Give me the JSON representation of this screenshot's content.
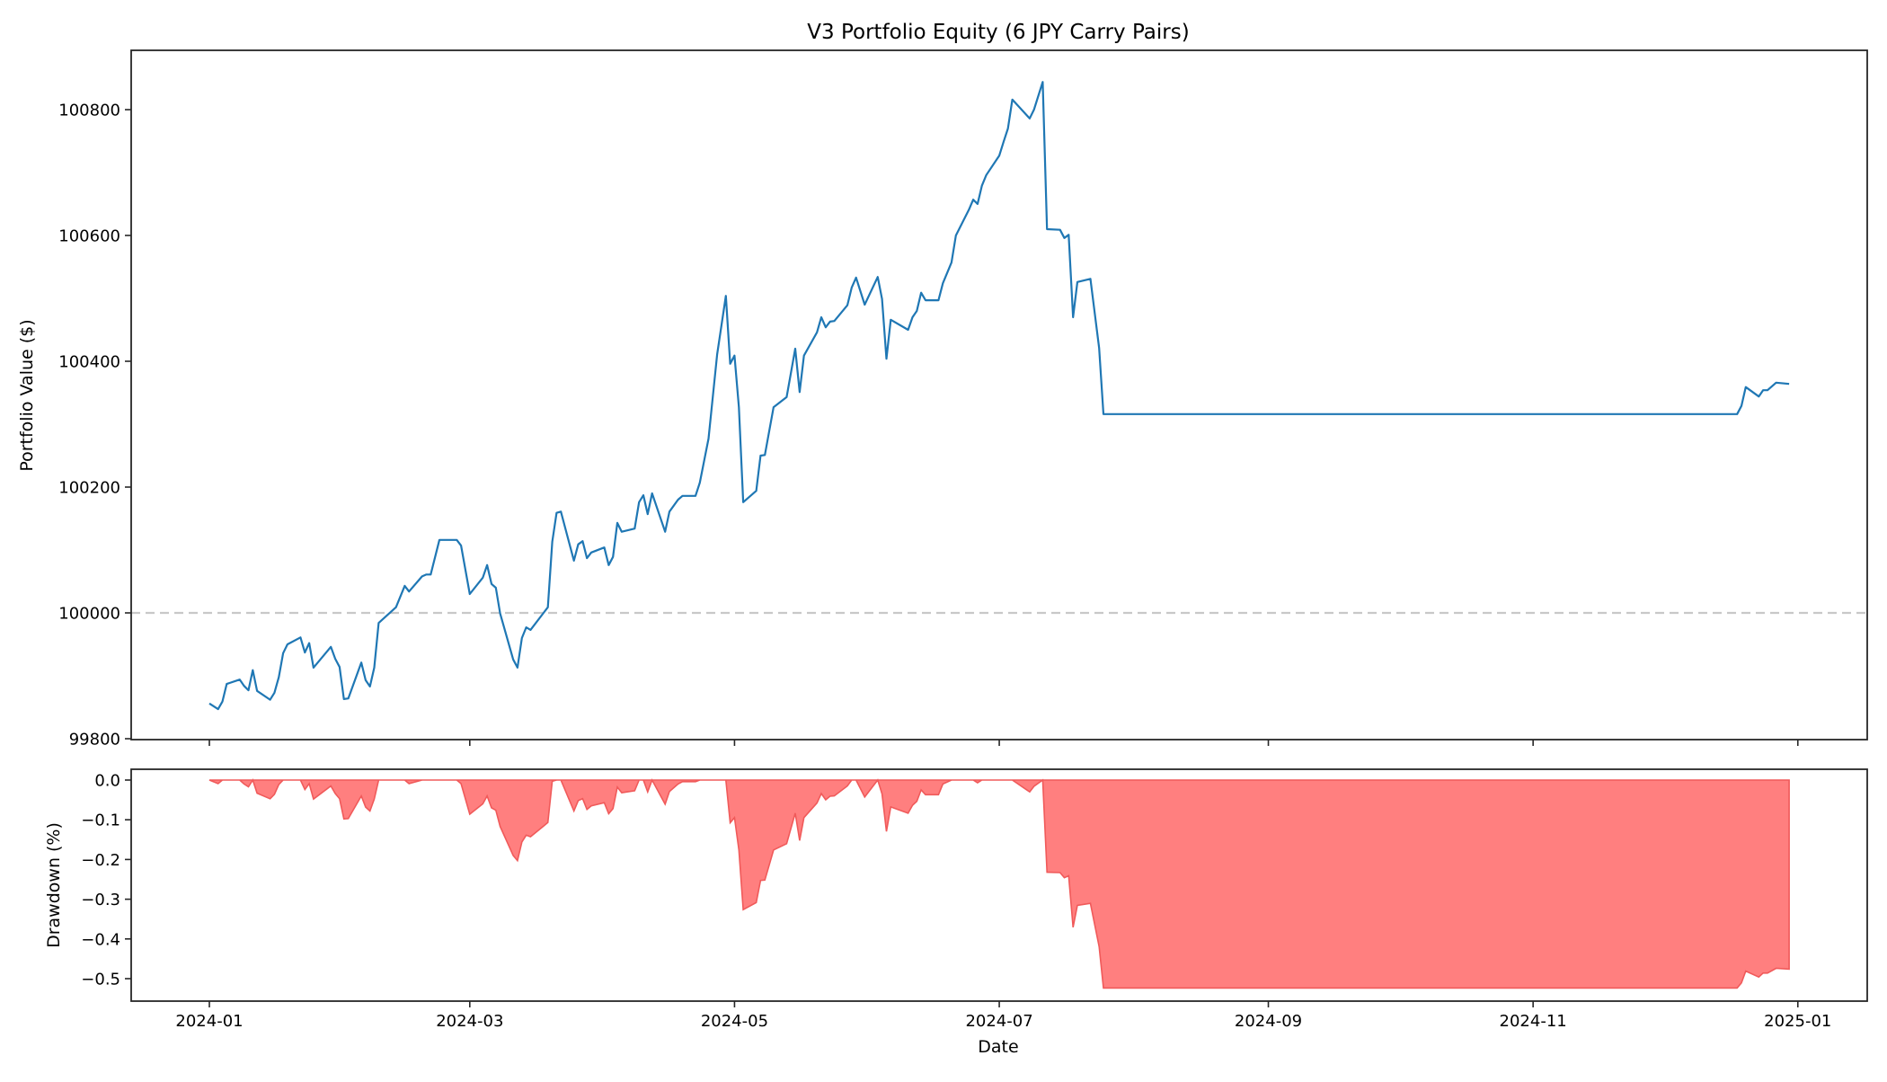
{
  "figure": {
    "title": "V3 Portfolio Equity (6 JPY Carry Pairs)",
    "colors": {
      "equity_line": "#1f77b4",
      "baseline": "#c8c8c8",
      "drawdown_fill": "#ff7f7f",
      "drawdown_edge": "#f05a5a",
      "axes": "#262626"
    }
  },
  "chart_data": [
    {
      "type": "line",
      "title": "V3 Portfolio Equity (6 JPY Carry Pairs)",
      "xlabel": "",
      "ylabel": "Portfolio Value ($)",
      "ylim": [
        99790,
        100895
      ],
      "yticks": [
        99800,
        100000,
        100200,
        100400,
        100600,
        100800
      ],
      "xticks": [
        "2024-01",
        "2024-03",
        "2024-05",
        "2024-07",
        "2024-09",
        "2024-11",
        "2025-01"
      ],
      "xlim": [
        "2023-12-13",
        "2025-01-13"
      ],
      "grid": false,
      "reference_line": {
        "y": 100000,
        "style": "dashed",
        "color": "#c8c8c8"
      },
      "series": [
        {
          "name": "Portfolio Value",
          "x": [
            "2024-01-01",
            "2024-01-03",
            "2024-01-04",
            "2024-01-05",
            "2024-01-08",
            "2024-01-09",
            "2024-01-10",
            "2024-01-11",
            "2024-01-12",
            "2024-01-15",
            "2024-01-16",
            "2024-01-17",
            "2024-01-18",
            "2024-01-19",
            "2024-01-22",
            "2024-01-23",
            "2024-01-24",
            "2024-01-25",
            "2024-01-29",
            "2024-01-30",
            "2024-01-31",
            "2024-02-01",
            "2024-02-02",
            "2024-02-05",
            "2024-02-06",
            "2024-02-07",
            "2024-02-08",
            "2024-02-09",
            "2024-02-13",
            "2024-02-15",
            "2024-02-16",
            "2024-02-19",
            "2024-02-20",
            "2024-02-21",
            "2024-02-23",
            "2024-02-27",
            "2024-02-28",
            "2024-03-01",
            "2024-03-04",
            "2024-03-05",
            "2024-03-06",
            "2024-03-07",
            "2024-03-08",
            "2024-03-11",
            "2024-03-12",
            "2024-03-13",
            "2024-03-14",
            "2024-03-15",
            "2024-03-18",
            "2024-03-19",
            "2024-03-20",
            "2024-03-21",
            "2024-03-22",
            "2024-03-25",
            "2024-03-26",
            "2024-03-27",
            "2024-03-28",
            "2024-03-29",
            "2024-04-01",
            "2024-04-02",
            "2024-04-03",
            "2024-04-04",
            "2024-04-05",
            "2024-04-08",
            "2024-04-09",
            "2024-04-10",
            "2024-04-11",
            "2024-04-12",
            "2024-04-15",
            "2024-04-16",
            "2024-04-18",
            "2024-04-19",
            "2024-04-22",
            "2024-04-23",
            "2024-04-25",
            "2024-04-27",
            "2024-04-29",
            "2024-04-30",
            "2024-05-01",
            "2024-05-02",
            "2024-05-03",
            "2024-05-06",
            "2024-05-07",
            "2024-05-08",
            "2024-05-10",
            "2024-05-13",
            "2024-05-15",
            "2024-05-16",
            "2024-05-17",
            "2024-05-20",
            "2024-05-21",
            "2024-05-22",
            "2024-05-23",
            "2024-05-24",
            "2024-05-27",
            "2024-05-28",
            "2024-05-29",
            "2024-05-31",
            "2024-06-03",
            "2024-06-04",
            "2024-06-05",
            "2024-06-06",
            "2024-06-10",
            "2024-06-11",
            "2024-06-12",
            "2024-06-13",
            "2024-06-14",
            "2024-06-17",
            "2024-06-18",
            "2024-06-20",
            "2024-06-21",
            "2024-06-24",
            "2024-06-25",
            "2024-06-26",
            "2024-06-27",
            "2024-06-28",
            "2024-07-01",
            "2024-07-02",
            "2024-07-03",
            "2024-07-04",
            "2024-07-08",
            "2024-07-09",
            "2024-07-11",
            "2024-07-12",
            "2024-07-15",
            "2024-07-16",
            "2024-07-17",
            "2024-07-18",
            "2024-07-19",
            "2024-07-22",
            "2024-07-24",
            "2024-07-25",
            "2024-12-18",
            "2024-12-19",
            "2024-12-20",
            "2024-12-23",
            "2024-12-24",
            "2024-12-25",
            "2024-12-27",
            "2024-12-30"
          ],
          "values": [
            99856,
            99847,
            99859,
            99887,
            99894,
            99884,
            99877,
            99909,
            99876,
            99862,
            99873,
            99898,
            99936,
            99950,
            99961,
            99937,
            99952,
            99913,
            99946,
            99927,
            99914,
            99863,
            99864,
            99921,
            99893,
            99883,
            99913,
            99984,
            100009,
            100043,
            100034,
            100058,
            100061,
            100061,
            100116,
            100116,
            100107,
            100030,
            100056,
            100076,
            100046,
            100040,
            99999,
            99926,
            99913,
            99960,
            99977,
            99973,
            100000,
            100009,
            100113,
            100159,
            100161,
            100083,
            100109,
            100114,
            100087,
            100096,
            100104,
            100076,
            100089,
            100143,
            100129,
            100134,
            100176,
            100187,
            100157,
            100190,
            100129,
            100161,
            100180,
            100186,
            100186,
            100207,
            100277,
            100411,
            100504,
            100396,
            100409,
            100327,
            100176,
            100194,
            100250,
            100251,
            100327,
            100343,
            100420,
            100351,
            100409,
            100446,
            100470,
            100454,
            100463,
            100464,
            100489,
            100517,
            100533,
            100490,
            100534,
            100499,
            100404,
            100466,
            100450,
            100470,
            100480,
            100509,
            100497,
            100497,
            100524,
            100557,
            100600,
            100641,
            100657,
            100650,
            100679,
            100696,
            100727,
            100749,
            100770,
            100816,
            100786,
            100800,
            100844,
            100610,
            100609,
            100596,
            100601,
            100470,
            100526,
            100531,
            100421,
            100316,
            100316,
            100329,
            100359,
            100344,
            100354,
            100354,
            100366,
            100364
          ]
        }
      ]
    },
    {
      "type": "area",
      "title": "",
      "xlabel": "Date",
      "ylabel": "Drawdown (%)",
      "ylim": [
        -0.555,
        0.027
      ],
      "yticks": [
        0.0,
        -0.1,
        -0.2,
        -0.3,
        -0.4,
        -0.5
      ],
      "ytick_labels": [
        "0.0",
        "−0.1",
        "−0.2",
        "−0.3",
        "−0.4",
        "−0.5"
      ],
      "xticks": [
        "2024-01",
        "2024-03",
        "2024-05",
        "2024-07",
        "2024-09",
        "2024-11",
        "2025-01"
      ],
      "grid": false,
      "series": [
        {
          "name": "Drawdown",
          "derived_from": "running max of Portfolio Value",
          "min_value": -0.524,
          "final_value": -0.477
        }
      ]
    }
  ],
  "axes": {
    "top": {
      "ylabel": "Portfolio Value ($)",
      "ytick_labels": [
        "99800",
        "100000",
        "100200",
        "100400",
        "100600",
        "100800"
      ]
    },
    "bottom": {
      "ylabel": "Drawdown (%)",
      "xlabel": "Date",
      "ytick_labels": [
        "0.0",
        "−0.1",
        "−0.2",
        "−0.3",
        "−0.4",
        "−0.5"
      ],
      "xtick_labels": [
        "2024-01",
        "2024-03",
        "2024-05",
        "2024-07",
        "2024-09",
        "2024-11",
        "2025-01"
      ]
    }
  }
}
